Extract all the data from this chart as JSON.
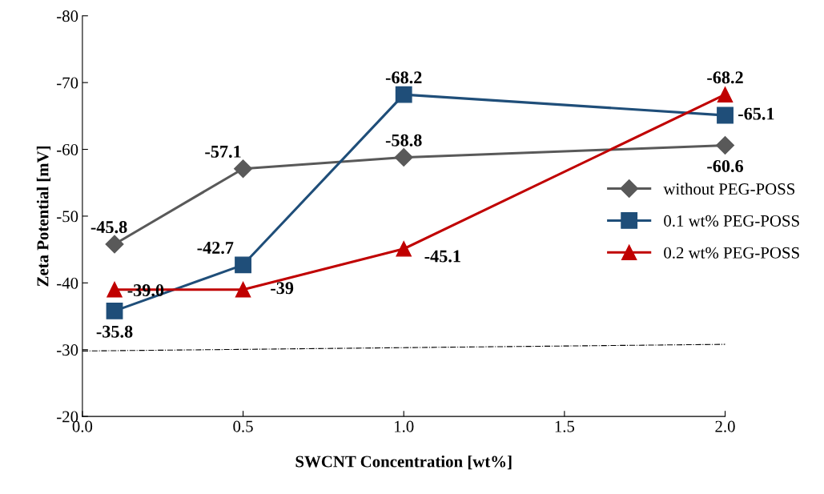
{
  "chart_data": {
    "type": "line",
    "xlabel": "SWCNT Concentration [wt%]",
    "ylabel": "Zeta Potential [mV]",
    "xlim": [
      0.0,
      2.0
    ],
    "xticks": [
      {
        "value": 0.0,
        "label": "0.0"
      },
      {
        "value": 0.5,
        "label": "0.5"
      },
      {
        "value": 1.0,
        "label": "1.0"
      },
      {
        "value": 1.5,
        "label": "1.5"
      },
      {
        "value": 2.0,
        "label": "2.0"
      }
    ],
    "ylim": [
      -20,
      -80
    ],
    "yticks": [
      -20,
      -30,
      -40,
      -50,
      -60,
      -70,
      -80
    ],
    "grid": false,
    "legend": "right",
    "line_style": "solid",
    "series": [
      {
        "name": "without PEG-POSS",
        "color": "#595959",
        "marker": "diamond",
        "x": [
          0.1,
          0.5,
          1.0,
          2.0
        ],
        "values": [
          -45.8,
          -57.1,
          -58.8,
          -60.6
        ],
        "value_labels": [
          "-45.8",
          "-57.1",
          "-58.8",
          "-60.6"
        ]
      },
      {
        "name": "0.1 wt% PEG-POSS",
        "color": "#1f4e79",
        "marker": "square",
        "x": [
          0.1,
          0.5,
          1.0,
          2.0
        ],
        "values": [
          -35.8,
          -42.7,
          -68.2,
          -65.1
        ],
        "value_labels": [
          "-35.8",
          "-42.7",
          "-68.2",
          "-65.1"
        ]
      },
      {
        "name": "0.2 wt% PEG-POSS",
        "color": "#c00000",
        "marker": "triangle",
        "x": [
          0.1,
          0.5,
          1.0,
          2.0
        ],
        "values": [
          -39.0,
          -39.0,
          -45.1,
          -68.2
        ],
        "value_labels": [
          "-39.0",
          "-39",
          "-45.1",
          "-68.2"
        ]
      },
      {
        "color": "#000000",
        "marker": "none",
        "line_style": "dashdot",
        "x": [
          0.0,
          2.0
        ],
        "values": [
          -29.8,
          -30.8
        ]
      }
    ]
  }
}
